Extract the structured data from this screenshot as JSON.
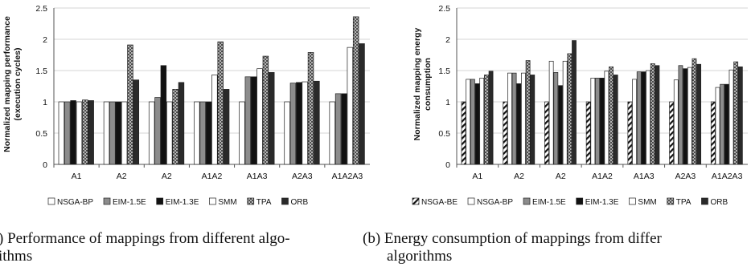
{
  "captions": {
    "left_line1": ") Performance of mappings from different algo-",
    "left_line2": "ithms",
    "right_line1": "(b) Energy consumption of mappings from differ",
    "right_line2": "algorithms"
  },
  "colors": {
    "NSGA-BE": "#ffffff",
    "NSGA-BP": "#ffffff",
    "EIM-1.5E": "#8c8c8c",
    "EIM-1.3E": "#111111",
    "SMM": "#ffffff",
    "TPA": "#c8c8c8",
    "ORB": "#2a2a2a",
    "grid": "#d4d4d4"
  },
  "chart_data": [
    {
      "type": "bar",
      "ylabel": "Normalized mapping performance (execution cycles)",
      "ylim": [
        0,
        2.5
      ],
      "yticks": [
        "0",
        "0.5",
        "1",
        "1.5",
        "2",
        "2.5"
      ],
      "grid": true,
      "legend_position": "bottom",
      "categories": [
        "A1",
        "A2",
        "A2",
        "A1A2",
        "A1A3",
        "A2A3",
        "A1A2A3"
      ],
      "series": [
        {
          "name": "NSGA-BP",
          "values": [
            1.0,
            1.0,
            1.0,
            1.0,
            1.0,
            1.0,
            1.0
          ]
        },
        {
          "name": "EIM-1.5E",
          "values": [
            1.0,
            1.0,
            1.07,
            1.0,
            1.4,
            1.3,
            1.13
          ]
        },
        {
          "name": "EIM-1.3E",
          "values": [
            1.02,
            1.0,
            1.58,
            1.0,
            1.4,
            1.31,
            1.13
          ]
        },
        {
          "name": "SMM",
          "values": [
            1.0,
            1.0,
            1.0,
            1.43,
            1.53,
            1.32,
            1.87
          ]
        },
        {
          "name": "TPA",
          "values": [
            1.03,
            1.91,
            1.2,
            1.96,
            1.73,
            1.79,
            2.36
          ]
        },
        {
          "name": "ORB",
          "values": [
            1.02,
            1.35,
            1.31,
            1.2,
            1.47,
            1.33,
            1.93
          ]
        }
      ]
    },
    {
      "type": "bar",
      "ylabel": "Normalized mapping energy consumption",
      "ylim": [
        0,
        2.5
      ],
      "yticks": [
        "0",
        "0.5",
        "1",
        "1.5",
        "2",
        "2.5"
      ],
      "grid": true,
      "legend_position": "bottom",
      "categories": [
        "A1",
        "A2",
        "A2",
        "A1A2",
        "A1A3",
        "A2A3",
        "A1A2A3"
      ],
      "series": [
        {
          "name": "NSGA-BE",
          "values": [
            1.0,
            1.0,
            1.0,
            1.0,
            1.0,
            1.0,
            1.0
          ]
        },
        {
          "name": "NSGA-BP",
          "values": [
            1.36,
            1.46,
            1.65,
            1.38,
            1.36,
            1.35,
            1.23
          ]
        },
        {
          "name": "EIM-1.5E",
          "values": [
            1.36,
            1.46,
            1.47,
            1.38,
            1.48,
            1.58,
            1.28
          ]
        },
        {
          "name": "EIM-1.3E",
          "values": [
            1.29,
            1.29,
            1.26,
            1.38,
            1.48,
            1.53,
            1.28
          ]
        },
        {
          "name": "SMM",
          "values": [
            1.38,
            1.46,
            1.65,
            1.49,
            1.5,
            1.55,
            1.51
          ]
        },
        {
          "name": "TPA",
          "values": [
            1.43,
            1.66,
            1.77,
            1.56,
            1.61,
            1.69,
            1.64
          ]
        },
        {
          "name": "ORB",
          "values": [
            1.49,
            1.43,
            1.98,
            1.43,
            1.58,
            1.6,
            1.56
          ]
        }
      ]
    }
  ]
}
